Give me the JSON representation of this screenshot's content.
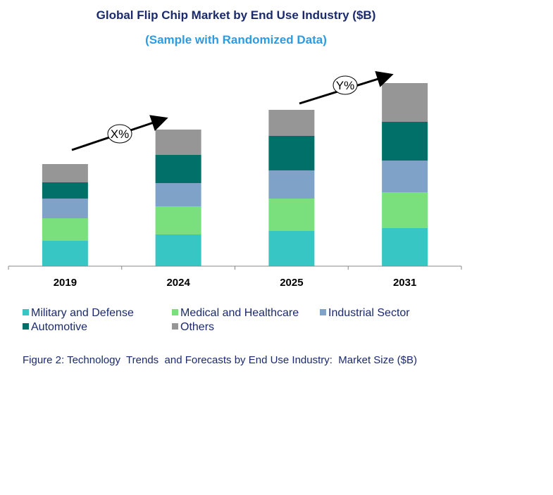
{
  "chart_data": {
    "type": "bar",
    "stacked": true,
    "title": "Global Flip Chip Market by End Use Industry ($B)",
    "subtitle": "(Sample with Randomized Data)",
    "xlabel": "",
    "ylabel": "",
    "categories": [
      "2019",
      "2024",
      "2025",
      "2031"
    ],
    "ylim": [
      0,
      26
    ],
    "grid": false,
    "legend_position": "bottom",
    "series": [
      {
        "name": "Military and Defense",
        "color": "#38c6c4",
        "values": [
          3.6,
          4.5,
          5.0,
          5.4
        ]
      },
      {
        "name": "Medical and Healthcare",
        "color": "#7ae07e",
        "values": [
          3.2,
          4.0,
          4.6,
          5.1
        ]
      },
      {
        "name": "Industrial Sector",
        "color": "#7fa3c8",
        "values": [
          2.8,
          3.3,
          4.0,
          4.5
        ]
      },
      {
        "name": "Automotive",
        "color": "#007068",
        "values": [
          2.3,
          4.0,
          4.9,
          5.5
        ]
      },
      {
        "name": "Others",
        "color": "#969696",
        "values": [
          2.6,
          3.6,
          3.7,
          5.5
        ]
      }
    ],
    "annotations": [
      "X%",
      "Y%"
    ]
  },
  "caption": "Figure 2: Technology  Trends  and Forecasts by End Use Industry:  Market Size ($B)"
}
